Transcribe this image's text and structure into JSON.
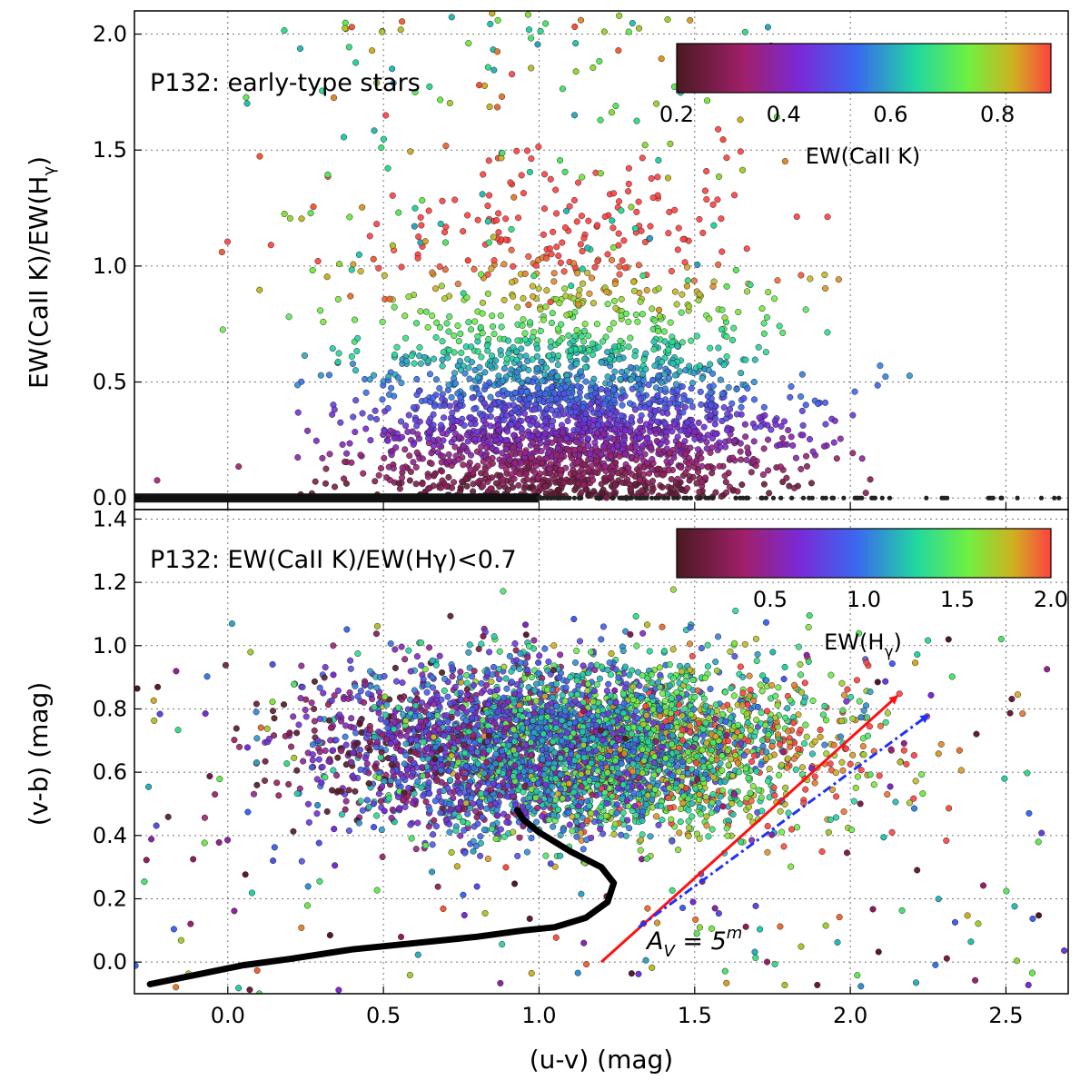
{
  "chart_data": [
    {
      "type": "scatter",
      "panel": "top",
      "annotation": "P132: early-type stars",
      "ylabel": "EW(CaII K)/EW(Hγ)",
      "xlabel": "",
      "xlim": [
        -0.3,
        2.7
      ],
      "ylim": [
        -0.05,
        2.1
      ],
      "x_ticks": [],
      "y_ticks": [
        "0.0",
        "0.5",
        "1.0",
        "1.5",
        "2.0"
      ],
      "y_tick_values": [
        0.0,
        0.5,
        1.0,
        1.5,
        2.0
      ],
      "x_tick_values": [
        0.0,
        0.5,
        1.0,
        1.5,
        2.0,
        2.5
      ],
      "grid": true,
      "colorbar": {
        "label": "EW(CaII K)",
        "range": [
          0.2,
          0.9
        ],
        "ticks": [
          "0.2",
          "0.4",
          "0.6",
          "0.8"
        ],
        "tick_values": [
          0.2,
          0.4,
          0.6,
          0.8
        ],
        "placement": "top-right"
      },
      "zero_line": {
        "y": 0.0,
        "x_range": [
          -0.3,
          2.7
        ],
        "dense_until": 1.0
      },
      "cloud": {
        "x_center": 1.1,
        "y_center": 0.35,
        "color_by": "EW(CaII K)"
      }
    },
    {
      "type": "scatter",
      "panel": "bottom",
      "annotation": "P132: EW(CaII K)/EW(Hγ)<0.7",
      "xlabel": "(u-v) (mag)",
      "ylabel": "(v-b) (mag)",
      "xlim": [
        -0.3,
        2.7
      ],
      "ylim": [
        -0.1,
        1.43
      ],
      "x_ticks": [
        "0.0",
        "0.5",
        "1.0",
        "1.5",
        "2.0",
        "2.5"
      ],
      "x_tick_values": [
        0.0,
        0.5,
        1.0,
        1.5,
        2.0,
        2.5
      ],
      "y_ticks": [
        "0.0",
        "0.2",
        "0.4",
        "0.6",
        "0.8",
        "1.0",
        "1.2",
        "1.4"
      ],
      "y_tick_values": [
        0.0,
        0.2,
        0.4,
        0.6,
        0.8,
        1.0,
        1.2,
        1.4
      ],
      "grid": true,
      "colorbar": {
        "label": "EW(Hγ)",
        "range": [
          0.0,
          2.0
        ],
        "ticks": [
          "0.5",
          "1.0",
          "1.5",
          "2.0"
        ],
        "tick_values": [
          0.5,
          1.0,
          1.5,
          2.0
        ],
        "placement": "top-right"
      },
      "cloud": {
        "x_center": 1.1,
        "y_center": 0.68,
        "color_by": "EW(Hγ)"
      },
      "locus": {
        "name": "",
        "color": "#000000",
        "points": [
          [
            -0.25,
            -0.07
          ],
          [
            -0.1,
            -0.04
          ],
          [
            0.05,
            -0.01
          ],
          [
            0.2,
            0.01
          ],
          [
            0.4,
            0.04
          ],
          [
            0.6,
            0.06
          ],
          [
            0.8,
            0.08
          ],
          [
            0.95,
            0.1
          ],
          [
            1.05,
            0.11
          ],
          [
            1.15,
            0.14
          ],
          [
            1.22,
            0.19
          ],
          [
            1.24,
            0.25
          ],
          [
            1.2,
            0.3
          ],
          [
            1.1,
            0.35
          ],
          [
            1.0,
            0.41
          ],
          [
            0.95,
            0.45
          ],
          [
            0.93,
            0.48
          ]
        ]
      },
      "reddening_vectors": [
        {
          "style": "solid",
          "color": "#ff1010",
          "from": [
            1.2,
            0.0
          ],
          "to": [
            2.15,
            0.84
          ]
        },
        {
          "style": "dash-dot",
          "color": "#2030ff",
          "from": [
            1.32,
            0.11
          ],
          "to": [
            2.25,
            0.78
          ]
        }
      ],
      "vector_label": "A_V = 5^m"
    }
  ]
}
